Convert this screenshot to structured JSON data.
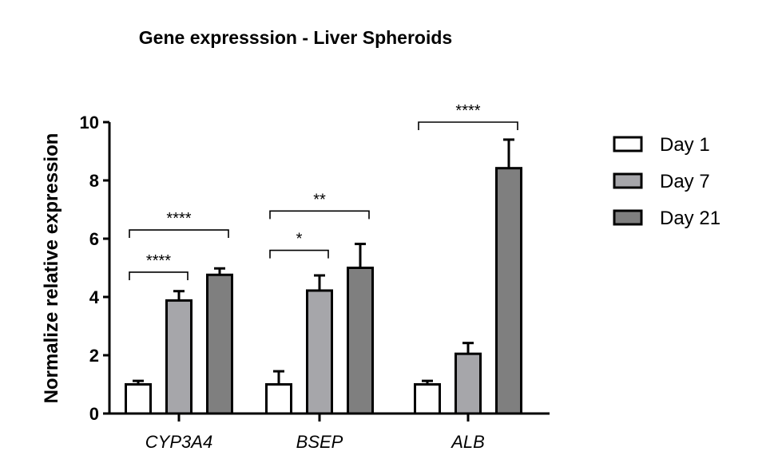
{
  "chart_data": {
    "type": "bar",
    "title": "Gene expresssion - Liver Spheroids",
    "xlabel": "",
    "ylabel": "Normalize relative expression",
    "ylim": [
      0,
      10
    ],
    "yticks": [
      "0",
      "2",
      "4",
      "6",
      "8",
      "10"
    ],
    "categories": [
      "CYP3A4",
      "BSEP",
      "ALB"
    ],
    "series": [
      {
        "name": "Day 1",
        "color": "#ffffff",
        "values": [
          1.0,
          1.0,
          1.0
        ],
        "errors": [
          0.12,
          0.45,
          0.12
        ]
      },
      {
        "name": "Day 7",
        "color": "#a6a6aa",
        "values": [
          3.88,
          4.22,
          2.05
        ],
        "errors": [
          0.32,
          0.52,
          0.37
        ]
      },
      {
        "name": "Day 21",
        "color": "#7f7f7f",
        "values": [
          4.76,
          5.0,
          8.42
        ],
        "errors": [
          0.22,
          0.82,
          0.98
        ]
      }
    ],
    "significance": [
      {
        "category": "CYP3A4",
        "from": "Day 1",
        "to": "Day 7",
        "label": "****",
        "level": 4.85
      },
      {
        "category": "CYP3A4",
        "from": "Day 1",
        "to": "Day 21",
        "label": "****",
        "level": 6.3
      },
      {
        "category": "BSEP",
        "from": "Day 1",
        "to": "Day 7",
        "label": "*",
        "level": 5.6
      },
      {
        "category": "BSEP",
        "from": "Day 1",
        "to": "Day 21",
        "label": "**",
        "level": 6.95
      },
      {
        "category": "ALB",
        "from": "Day 1",
        "to": "Day 21",
        "label": "****",
        "level": 10.0
      }
    ],
    "legend_position": "right",
    "grid": false
  }
}
